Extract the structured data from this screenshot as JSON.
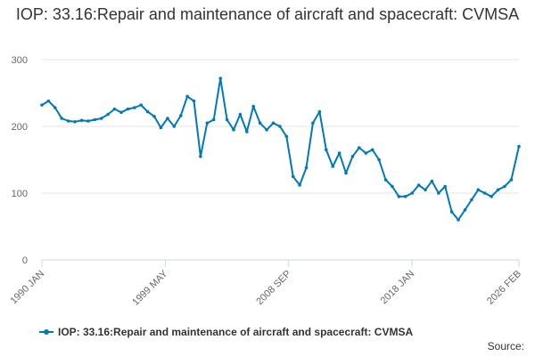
{
  "chart_data": {
    "type": "line",
    "title": "IOP: 33.16:Repair and maintenance of aircraft and spacecraft: CVMSA",
    "xlabel": "",
    "ylabel": "",
    "ylim": [
      0,
      300
    ],
    "yticks": [
      0,
      100,
      200,
      300
    ],
    "xlim": [
      "1990 JAN",
      "2026 FEB"
    ],
    "xticks": [
      "1990 JAN",
      "1999 MAY",
      "2008 SEP",
      "2018 JAN",
      "2026 FEB"
    ],
    "grid": "horizontal",
    "legend_position": "bottom",
    "series_color": "#0079b9",
    "series": [
      {
        "name": "IOP: 33.16:Repair and maintenance of aircraft and spacecraft: CVMSA",
        "x": [
          "1990 JAN",
          "1990 JUL",
          "1991 JAN",
          "1991 JUL",
          "1992 JAN",
          "1992 JUL",
          "1993 JAN",
          "1993 JUL",
          "1994 JAN",
          "1994 JUL",
          "1995 JAN",
          "1995 JUL",
          "1996 JAN",
          "1996 JUL",
          "1997 JAN",
          "1997 JUL",
          "1998 JAN",
          "1998 JUL",
          "1999 JAN",
          "1999 JUL",
          "2000 JAN",
          "2000 JUL",
          "2001 JAN",
          "2001 JUL",
          "2002 JAN",
          "2002 JUL",
          "2003 JAN",
          "2003 JUL",
          "2004 JAN",
          "2004 JUL",
          "2005 JAN",
          "2005 JUL",
          "2006 JAN",
          "2006 JUL",
          "2007 JAN",
          "2007 JUL",
          "2008 JAN",
          "2008 JUL",
          "2009 JAN",
          "2009 JUL",
          "2010 JAN",
          "2010 JUL",
          "2011 JAN",
          "2011 JUL",
          "2012 JAN",
          "2012 JUL",
          "2013 JAN",
          "2013 JUL",
          "2014 JAN",
          "2014 JUL",
          "2015 JAN",
          "2015 JUL",
          "2016 JAN",
          "2016 JUL",
          "2017 JAN",
          "2017 JUL",
          "2018 JAN",
          "2018 JUL",
          "2019 JAN",
          "2019 JUL",
          "2020 JAN",
          "2020 JUL",
          "2021 JAN",
          "2021 JUL",
          "2022 JAN",
          "2022 JUL",
          "2023 JAN",
          "2023 JUL",
          "2024 JAN",
          "2024 JUL",
          "2025 JAN",
          "2025 JUL",
          "2026 FEB"
        ],
        "values": [
          232,
          238,
          228,
          212,
          208,
          207,
          209,
          208,
          210,
          212,
          218,
          226,
          221,
          226,
          228,
          232,
          222,
          215,
          198,
          212,
          200,
          216,
          245,
          238,
          155,
          205,
          210,
          272,
          210,
          195,
          218,
          192,
          230,
          205,
          195,
          205,
          200,
          185,
          125,
          112,
          138,
          205,
          222,
          165,
          140,
          160,
          130,
          155,
          168,
          160,
          165,
          150,
          120,
          110,
          95,
          95,
          100,
          112,
          105,
          118,
          100,
          110,
          72,
          60,
          75,
          90,
          105,
          100,
          95,
          105,
          110,
          120,
          170
        ]
      }
    ]
  },
  "source_label": "Source:"
}
